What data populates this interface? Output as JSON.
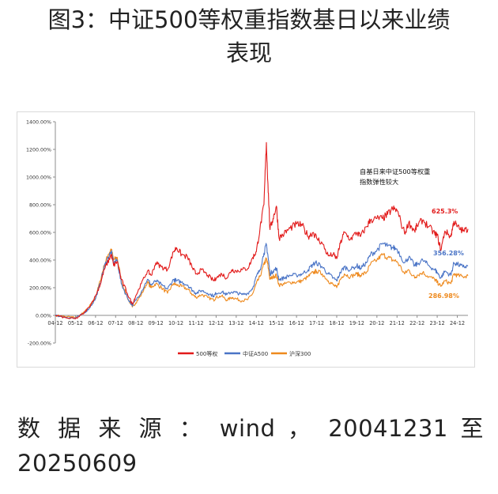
{
  "figure": {
    "title_line1": "图3：中证500等权重指数基日以来业绩",
    "title_line2": "表现",
    "source": "数 据 来 源 ： wind ， 20041231 至 20250609"
  },
  "colors": {
    "s500": "#e21a1a",
    "a500": "#4a74c6",
    "hs300": "#ee8a1e",
    "axis": "#8c8c8c",
    "text": "#222222"
  },
  "chart_data": {
    "type": "line",
    "title": "",
    "xlabel": "",
    "ylabel": "",
    "ylim": [
      -200,
      1400
    ],
    "y_ticks": [
      "-200.00%",
      "0.00%",
      "200.00%",
      "400.00%",
      "600.00%",
      "800.00%",
      "1000.00%",
      "1200.00%",
      "1400.00%"
    ],
    "y_tick_values": [
      -200,
      0,
      200,
      400,
      600,
      800,
      1000,
      1200,
      1400
    ],
    "x_ticks": [
      "04-12",
      "05-12",
      "06-12",
      "07-12",
      "08-12",
      "09-12",
      "10-12",
      "11-12",
      "12-12",
      "13-12",
      "14-12",
      "15-12",
      "16-12",
      "17-12",
      "18-12",
      "19-12",
      "20-12",
      "21-12",
      "22-12",
      "23-12",
      "24-12"
    ],
    "xlim": [
      2004.92,
      2025.45
    ],
    "grid": false,
    "legend_position": "bottom",
    "annotation": {
      "line1": "自基日来中证500等权重",
      "line2": "指数弹性较大"
    },
    "series": [
      {
        "name": "500等权",
        "end_label": "625.3%",
        "points": [
          [
            2004.92,
            0
          ],
          [
            2005.5,
            -20
          ],
          [
            2005.92,
            -25
          ],
          [
            2006.3,
            10
          ],
          [
            2006.6,
            60
          ],
          [
            2006.92,
            140
          ],
          [
            2007.15,
            220
          ],
          [
            2007.35,
            330
          ],
          [
            2007.55,
            390
          ],
          [
            2007.7,
            440
          ],
          [
            2007.82,
            360
          ],
          [
            2008.0,
            390
          ],
          [
            2008.2,
            260
          ],
          [
            2008.5,
            160
          ],
          [
            2008.75,
            80
          ],
          [
            2008.92,
            140
          ],
          [
            2009.2,
            230
          ],
          [
            2009.5,
            320
          ],
          [
            2009.7,
            290
          ],
          [
            2009.92,
            380
          ],
          [
            2010.2,
            350
          ],
          [
            2010.5,
            330
          ],
          [
            2010.8,
            460
          ],
          [
            2010.95,
            490
          ],
          [
            2011.2,
            440
          ],
          [
            2011.5,
            420
          ],
          [
            2011.75,
            340
          ],
          [
            2011.92,
            300
          ],
          [
            2012.2,
            330
          ],
          [
            2012.5,
            290
          ],
          [
            2012.8,
            250
          ],
          [
            2012.92,
            270
          ],
          [
            2013.2,
            300
          ],
          [
            2013.45,
            270
          ],
          [
            2013.7,
            330
          ],
          [
            2013.92,
            320
          ],
          [
            2014.2,
            330
          ],
          [
            2014.5,
            340
          ],
          [
            2014.75,
            420
          ],
          [
            2014.92,
            460
          ],
          [
            2015.1,
            620
          ],
          [
            2015.3,
            800
          ],
          [
            2015.42,
            1250
          ],
          [
            2015.5,
            950
          ],
          [
            2015.6,
            620
          ],
          [
            2015.75,
            700
          ],
          [
            2015.92,
            790
          ],
          [
            2016.05,
            560
          ],
          [
            2016.3,
            590
          ],
          [
            2016.6,
            630
          ],
          [
            2016.92,
            660
          ],
          [
            2017.2,
            650
          ],
          [
            2017.5,
            570
          ],
          [
            2017.75,
            600
          ],
          [
            2017.92,
            560
          ],
          [
            2018.2,
            520
          ],
          [
            2018.5,
            430
          ],
          [
            2018.75,
            440
          ],
          [
            2018.92,
            410
          ],
          [
            2019.1,
            520
          ],
          [
            2019.3,
            600
          ],
          [
            2019.6,
            550
          ],
          [
            2019.92,
            600
          ],
          [
            2020.1,
            570
          ],
          [
            2020.4,
            640
          ],
          [
            2020.6,
            690
          ],
          [
            2020.92,
            700
          ],
          [
            2021.2,
            700
          ],
          [
            2021.45,
            730
          ],
          [
            2021.7,
            770
          ],
          [
            2021.92,
            760
          ],
          [
            2022.3,
            590
          ],
          [
            2022.5,
            670
          ],
          [
            2022.8,
            610
          ],
          [
            2022.92,
            650
          ],
          [
            2023.2,
            690
          ],
          [
            2023.5,
            640
          ],
          [
            2023.8,
            590
          ],
          [
            2023.92,
            580
          ],
          [
            2024.1,
            470
          ],
          [
            2024.3,
            610
          ],
          [
            2024.6,
            570
          ],
          [
            2024.75,
            680
          ],
          [
            2024.92,
            640
          ],
          [
            2025.2,
            610
          ],
          [
            2025.45,
            625
          ]
        ]
      },
      {
        "name": "中证A500",
        "end_label": "356.28%",
        "points": [
          [
            2004.92,
            0
          ],
          [
            2005.5,
            -15
          ],
          [
            2005.92,
            -20
          ],
          [
            2006.3,
            10
          ],
          [
            2006.6,
            50
          ],
          [
            2006.92,
            120
          ],
          [
            2007.15,
            230
          ],
          [
            2007.35,
            350
          ],
          [
            2007.55,
            420
          ],
          [
            2007.7,
            460
          ],
          [
            2007.82,
            380
          ],
          [
            2008.0,
            400
          ],
          [
            2008.2,
            230
          ],
          [
            2008.5,
            130
          ],
          [
            2008.75,
            70
          ],
          [
            2008.92,
            110
          ],
          [
            2009.2,
            170
          ],
          [
            2009.5,
            260
          ],
          [
            2009.7,
            220
          ],
          [
            2009.92,
            250
          ],
          [
            2010.2,
            220
          ],
          [
            2010.5,
            190
          ],
          [
            2010.8,
            260
          ],
          [
            2010.95,
            250
          ],
          [
            2011.2,
            240
          ],
          [
            2011.5,
            220
          ],
          [
            2011.75,
            180
          ],
          [
            2011.92,
            160
          ],
          [
            2012.2,
            180
          ],
          [
            2012.5,
            160
          ],
          [
            2012.8,
            140
          ],
          [
            2012.92,
            160
          ],
          [
            2013.2,
            170
          ],
          [
            2013.45,
            150
          ],
          [
            2013.7,
            170
          ],
          [
            2013.92,
            165
          ],
          [
            2014.2,
            150
          ],
          [
            2014.5,
            160
          ],
          [
            2014.75,
            200
          ],
          [
            2014.92,
            280
          ],
          [
            2015.1,
            330
          ],
          [
            2015.3,
            450
          ],
          [
            2015.42,
            510
          ],
          [
            2015.5,
            430
          ],
          [
            2015.6,
            300
          ],
          [
            2015.75,
            320
          ],
          [
            2015.92,
            340
          ],
          [
            2016.05,
            260
          ],
          [
            2016.3,
            270
          ],
          [
            2016.6,
            290
          ],
          [
            2016.92,
            290
          ],
          [
            2017.2,
            300
          ],
          [
            2017.5,
            330
          ],
          [
            2017.75,
            370
          ],
          [
            2017.92,
            380
          ],
          [
            2018.2,
            350
          ],
          [
            2018.5,
            300
          ],
          [
            2018.75,
            270
          ],
          [
            2018.92,
            250
          ],
          [
            2019.1,
            310
          ],
          [
            2019.3,
            350
          ],
          [
            2019.6,
            330
          ],
          [
            2019.92,
            360
          ],
          [
            2020.1,
            340
          ],
          [
            2020.4,
            380
          ],
          [
            2020.6,
            440
          ],
          [
            2020.92,
            470
          ],
          [
            2021.2,
            520
          ],
          [
            2021.45,
            500
          ],
          [
            2021.7,
            490
          ],
          [
            2021.92,
            480
          ],
          [
            2022.3,
            380
          ],
          [
            2022.5,
            420
          ],
          [
            2022.8,
            360
          ],
          [
            2022.92,
            370
          ],
          [
            2023.2,
            400
          ],
          [
            2023.5,
            360
          ],
          [
            2023.8,
            330
          ],
          [
            2023.92,
            310
          ],
          [
            2024.1,
            270
          ],
          [
            2024.3,
            320
          ],
          [
            2024.6,
            290
          ],
          [
            2024.75,
            380
          ],
          [
            2024.92,
            370
          ],
          [
            2025.2,
            350
          ],
          [
            2025.45,
            356
          ]
        ]
      },
      {
        "name": "沪深300",
        "end_label": "286.98%",
        "points": [
          [
            2004.92,
            0
          ],
          [
            2005.5,
            -10
          ],
          [
            2005.92,
            -15
          ],
          [
            2006.3,
            15
          ],
          [
            2006.6,
            60
          ],
          [
            2006.92,
            130
          ],
          [
            2007.15,
            250
          ],
          [
            2007.35,
            360
          ],
          [
            2007.55,
            440
          ],
          [
            2007.7,
            480
          ],
          [
            2007.82,
            400
          ],
          [
            2008.0,
            420
          ],
          [
            2008.2,
            250
          ],
          [
            2008.5,
            130
          ],
          [
            2008.75,
            60
          ],
          [
            2008.92,
            90
          ],
          [
            2009.2,
            150
          ],
          [
            2009.5,
            240
          ],
          [
            2009.7,
            200
          ],
          [
            2009.92,
            230
          ],
          [
            2010.2,
            200
          ],
          [
            2010.5,
            160
          ],
          [
            2010.8,
            230
          ],
          [
            2010.95,
            220
          ],
          [
            2011.2,
            210
          ],
          [
            2011.5,
            190
          ],
          [
            2011.75,
            150
          ],
          [
            2011.92,
            130
          ],
          [
            2012.2,
            150
          ],
          [
            2012.5,
            130
          ],
          [
            2012.8,
            110
          ],
          [
            2012.92,
            130
          ],
          [
            2013.2,
            140
          ],
          [
            2013.45,
            110
          ],
          [
            2013.7,
            130
          ],
          [
            2013.92,
            120
          ],
          [
            2014.2,
            105
          ],
          [
            2014.5,
            115
          ],
          [
            2014.75,
            160
          ],
          [
            2014.92,
            230
          ],
          [
            2015.1,
            280
          ],
          [
            2015.3,
            370
          ],
          [
            2015.42,
            410
          ],
          [
            2015.5,
            360
          ],
          [
            2015.6,
            260
          ],
          [
            2015.75,
            280
          ],
          [
            2015.92,
            290
          ],
          [
            2016.05,
            220
          ],
          [
            2016.3,
            225
          ],
          [
            2016.6,
            240
          ],
          [
            2016.92,
            240
          ],
          [
            2017.2,
            250
          ],
          [
            2017.5,
            280
          ],
          [
            2017.75,
            310
          ],
          [
            2017.92,
            320
          ],
          [
            2018.2,
            300
          ],
          [
            2018.5,
            250
          ],
          [
            2018.75,
            220
          ],
          [
            2018.92,
            200
          ],
          [
            2019.1,
            260
          ],
          [
            2019.3,
            300
          ],
          [
            2019.6,
            280
          ],
          [
            2019.92,
            300
          ],
          [
            2020.1,
            290
          ],
          [
            2020.4,
            310
          ],
          [
            2020.6,
            370
          ],
          [
            2020.92,
            400
          ],
          [
            2021.2,
            440
          ],
          [
            2021.45,
            420
          ],
          [
            2021.7,
            400
          ],
          [
            2021.92,
            390
          ],
          [
            2022.3,
            300
          ],
          [
            2022.5,
            330
          ],
          [
            2022.8,
            270
          ],
          [
            2022.92,
            290
          ],
          [
            2023.2,
            310
          ],
          [
            2023.5,
            280
          ],
          [
            2023.8,
            260
          ],
          [
            2023.92,
            240
          ],
          [
            2024.1,
            210
          ],
          [
            2024.3,
            250
          ],
          [
            2024.6,
            230
          ],
          [
            2024.75,
            300
          ],
          [
            2024.92,
            290
          ],
          [
            2025.2,
            280
          ],
          [
            2025.45,
            287
          ]
        ]
      }
    ]
  }
}
